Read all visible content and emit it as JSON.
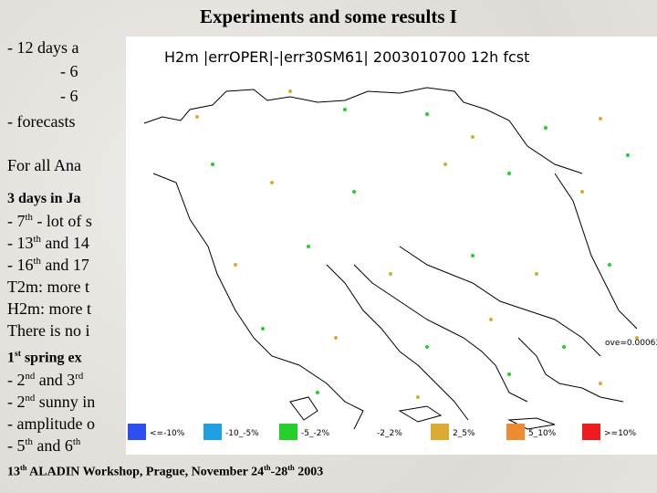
{
  "slide": {
    "title": "Experiments and some results I",
    "lines": [
      {
        "parts": [
          "- 12 days a"
        ]
      },
      {
        "indent": true,
        "parts": [
          "- 6"
        ]
      },
      {
        "indent": true,
        "parts": [
          "- 6"
        ]
      },
      {
        "parts": [
          "- forecasts"
        ]
      },
      {
        "parts": [
          "For all Ana"
        ]
      },
      {
        "bold": true,
        "parts": [
          "3 days in Ja"
        ]
      },
      {
        "parts": [
          "- 7",
          {
            "sup": "th"
          },
          " - lot of s"
        ]
      },
      {
        "parts": [
          "- 13",
          {
            "sup": "th"
          },
          " and 14"
        ]
      },
      {
        "parts": [
          "- 16",
          {
            "sup": "th"
          },
          " and 17"
        ]
      },
      {
        "parts": [
          "T2m: more t"
        ]
      },
      {
        "parts": [
          "H2m: more t"
        ]
      },
      {
        "parts": [
          "There is no i"
        ]
      },
      {
        "bold": true,
        "parts": [
          "1",
          {
            "sup": "st"
          },
          " spring ex"
        ]
      },
      {
        "parts": [
          "- 2",
          {
            "sup": "nd"
          },
          " and 3",
          {
            "sup": "rd"
          }
        ]
      },
      {
        "parts": [
          "- 2",
          {
            "sup": "nd"
          },
          " sunny in"
        ]
      },
      {
        "parts": [
          "- amplitude o"
        ]
      },
      {
        "parts": [
          "- 5",
          {
            "sup": "th"
          },
          " and 6",
          {
            "sup": "th"
          }
        ]
      }
    ],
    "footer": {
      "parts": [
        "13",
        {
          "sup": "th"
        },
        " ALADIN Workshop, Prague, November 24",
        {
          "sup": "th"
        },
        "-28",
        {
          "sup": "th"
        },
        " 2003"
      ]
    }
  },
  "map": {
    "title": "H2m  |errOPER|-|err30SM61|  2003010700  12h  fcst",
    "note": "ove=0.00063",
    "legend": [
      {
        "label": "<=-10%",
        "color": "#2d4ff2"
      },
      {
        "label": "-10_-5%",
        "color": "#1fa0e6"
      },
      {
        "label": "-5_-2%",
        "color": "#22d028"
      },
      {
        "label": "-2_2%"
      },
      {
        "label": "2_5%",
        "color": "#dcab33"
      },
      {
        "label": "5_10%",
        "color": "#ee8a30"
      },
      {
        "label": ">=10%",
        "color": "#ee1c1c"
      }
    ]
  }
}
